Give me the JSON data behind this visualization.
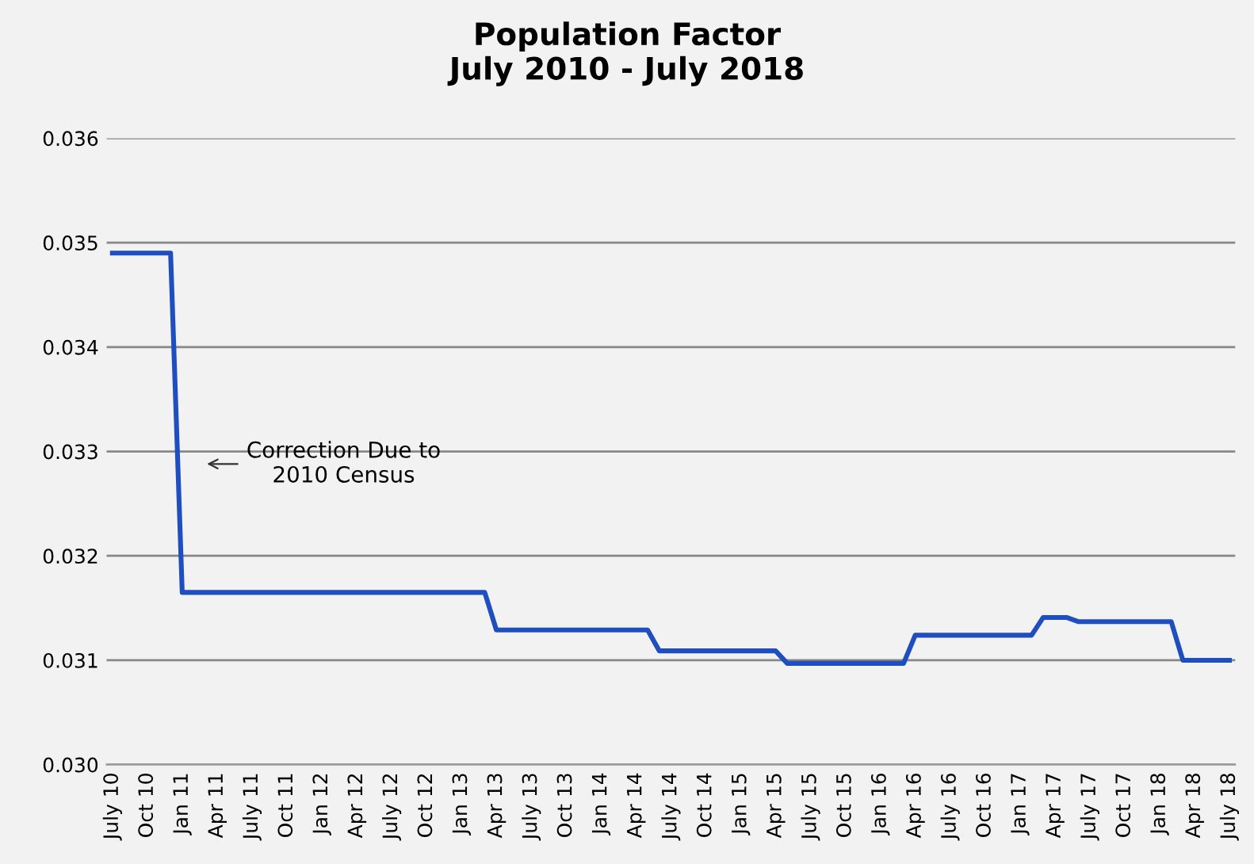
{
  "chart_data": {
    "type": "line",
    "title": "Population Factor\nJuly 2010 - July 2018",
    "categories": [
      "July 10",
      null,
      null,
      "Oct 10",
      null,
      null,
      "Jan 11",
      null,
      null,
      "Apr 11",
      null,
      null,
      "July 11",
      null,
      null,
      "Oct 11",
      null,
      null,
      "Jan 12",
      null,
      null,
      "Apr 12",
      null,
      null,
      "July 12",
      null,
      null,
      "Oct 12",
      null,
      null,
      "Jan 13",
      null,
      null,
      "Apr 13",
      null,
      null,
      "July 13",
      null,
      null,
      "Oct 13",
      null,
      null,
      "Jan 14",
      null,
      null,
      "Apr 14",
      null,
      null,
      "July 14",
      null,
      null,
      "Oct 14",
      null,
      null,
      "Jan 15",
      null,
      null,
      "Apr 15",
      null,
      null,
      "July 15",
      null,
      null,
      "Oct 15",
      null,
      null,
      "Jan 16",
      null,
      null,
      "Apr 16",
      null,
      null,
      "July 16",
      null,
      null,
      "Oct 16",
      null,
      null,
      "Jan 17",
      null,
      null,
      "Apr 17",
      null,
      null,
      "July 17",
      null,
      null,
      "Oct 17",
      null,
      null,
      "Jan 18",
      null,
      null,
      "Apr 18",
      null,
      null,
      "July 18"
    ],
    "series": [
      {
        "color": "#1f4fbf",
        "values": [
          0.0349,
          0.0349,
          0.0349,
          0.0349,
          0.0349,
          0.0349,
          0.03165,
          0.03165,
          0.03165,
          0.03165,
          0.03165,
          0.03165,
          0.03165,
          0.03165,
          0.03165,
          0.03165,
          0.03165,
          0.03165,
          0.03165,
          0.03165,
          0.03165,
          0.03165,
          0.03165,
          0.03165,
          0.03165,
          0.03165,
          0.03165,
          0.03165,
          0.03165,
          0.03165,
          0.03165,
          0.03165,
          0.03165,
          0.03129,
          0.03129,
          0.03129,
          0.03129,
          0.03129,
          0.03129,
          0.03129,
          0.03129,
          0.03129,
          0.03129,
          0.03129,
          0.03129,
          0.03129,
          0.03129,
          0.03109,
          0.03109,
          0.03109,
          0.03109,
          0.03109,
          0.03109,
          0.03109,
          0.03109,
          0.03109,
          0.03109,
          0.03109,
          0.03097,
          0.03097,
          0.03097,
          0.03097,
          0.03097,
          0.03097,
          0.03097,
          0.03097,
          0.03097,
          0.03097,
          0.03097,
          0.03124,
          0.03124,
          0.03124,
          0.03124,
          0.03124,
          0.03124,
          0.03124,
          0.03124,
          0.03124,
          0.03124,
          0.03124,
          0.03141,
          0.03141,
          0.03141,
          0.03137,
          0.03137,
          0.03137,
          0.03137,
          0.03137,
          0.03137,
          0.03137,
          0.03137,
          0.03137,
          0.031,
          0.031,
          0.031,
          0.031,
          0.031
        ]
      }
    ],
    "ylim": [
      0.03,
      0.036
    ],
    "yticks": [
      {
        "value": 0.03,
        "label": "0.030"
      },
      {
        "value": 0.031,
        "label": "0.031"
      },
      {
        "value": 0.032,
        "label": "0.032"
      },
      {
        "value": 0.033,
        "label": "0.033"
      },
      {
        "value": 0.034,
        "label": "0.034"
      },
      {
        "value": 0.035,
        "label": "0.035"
      },
      {
        "value": 0.036,
        "label": "0.036"
      }
    ],
    "grid": "y",
    "marker": "none",
    "line_style": "solid",
    "annotations": [
      "Correction Due to\n2010 Census"
    ]
  }
}
